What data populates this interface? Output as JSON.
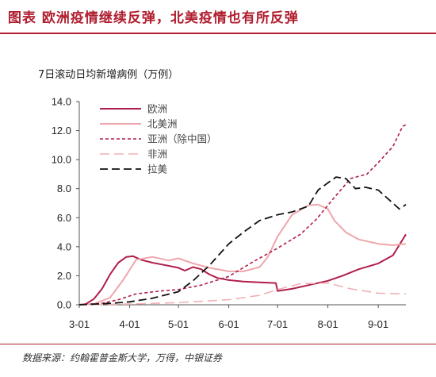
{
  "header": {
    "title": "图表    欧洲疫情继续反弹，北美疫情也有所反弹"
  },
  "footer": {
    "source": "数据来源：约翰霍普金斯大学，万得，中银证券"
  },
  "chart_data": {
    "type": "line",
    "title": "7日滚动日均新增病例（万例）",
    "xlabel": "",
    "ylabel": "",
    "x_range": [
      "03-01",
      "09-18"
    ],
    "xticks": [
      "3-01",
      "4-01",
      "5-01",
      "6-01",
      "7-01",
      "8-01",
      "9-01"
    ],
    "xtick_dates": [
      "03-01",
      "04-01",
      "05-01",
      "06-01",
      "07-01",
      "08-01",
      "09-01"
    ],
    "ylim": [
      0,
      14
    ],
    "yticks": [
      "0.0",
      "2.0",
      "4.0",
      "6.0",
      "8.0",
      "10.0",
      "12.0",
      "14.0"
    ],
    "ytick_values": [
      0,
      2,
      4,
      6,
      8,
      10,
      12,
      14
    ],
    "grid": false,
    "legend_position": "top-left",
    "series": [
      {
        "name": "欧洲",
        "color": "#b01e4a",
        "dash": "solid",
        "width": 2,
        "x": [
          "03-01",
          "03-05",
          "03-10",
          "03-15",
          "03-20",
          "03-25",
          "03-30",
          "04-03",
          "04-08",
          "04-15",
          "04-22",
          "05-01",
          "05-05",
          "05-10",
          "05-15",
          "05-20",
          "05-25",
          "06-01",
          "06-10",
          "06-20",
          "06-30",
          "07-01",
          "07-10",
          "07-20",
          "08-01",
          "08-10",
          "08-20",
          "09-01",
          "09-10",
          "09-18"
        ],
        "y": [
          0.0,
          0.05,
          0.4,
          1.1,
          2.1,
          2.9,
          3.3,
          3.35,
          3.1,
          2.9,
          2.75,
          2.55,
          2.35,
          2.6,
          2.45,
          2.1,
          1.85,
          1.7,
          1.6,
          1.55,
          1.5,
          0.95,
          1.1,
          1.35,
          1.65,
          2.0,
          2.45,
          2.85,
          3.4,
          4.85
        ]
      },
      {
        "name": "北美洲",
        "color": "#eea6ac",
        "dash": "solid",
        "width": 2,
        "x": [
          "03-01",
          "03-10",
          "03-20",
          "03-28",
          "04-05",
          "04-15",
          "04-25",
          "05-01",
          "05-10",
          "05-20",
          "06-01",
          "06-10",
          "06-20",
          "06-25",
          "07-01",
          "07-10",
          "07-20",
          "07-26",
          "08-01",
          "08-05",
          "08-12",
          "08-20",
          "09-01",
          "09-10",
          "09-18"
        ],
        "y": [
          0.0,
          0.05,
          0.5,
          1.7,
          3.1,
          3.3,
          3.05,
          3.2,
          2.85,
          2.55,
          2.3,
          2.3,
          2.6,
          3.3,
          4.7,
          6.2,
          6.85,
          6.9,
          6.6,
          5.8,
          5.0,
          4.5,
          4.2,
          4.1,
          4.2
        ]
      },
      {
        "name": "亚洲（除中国）",
        "color": "#b01e4a",
        "dash": "4,3",
        "width": 1.6,
        "x": [
          "03-01",
          "03-15",
          "03-25",
          "04-05",
          "04-20",
          "05-01",
          "05-15",
          "06-01",
          "06-15",
          "07-01",
          "07-15",
          "07-25",
          "08-05",
          "08-15",
          "08-25",
          "09-01",
          "09-10",
          "09-16",
          "09-18"
        ],
        "y": [
          0.0,
          0.1,
          0.35,
          0.75,
          0.95,
          1.05,
          1.35,
          1.95,
          2.9,
          3.9,
          4.85,
          5.9,
          7.4,
          8.7,
          9.0,
          9.8,
          10.9,
          12.3,
          12.4
        ]
      },
      {
        "name": "非洲",
        "color": "#f0b0b4",
        "dash": "12,6",
        "width": 1.6,
        "x": [
          "03-01",
          "04-01",
          "05-01",
          "06-01",
          "06-20",
          "07-01",
          "07-15",
          "08-01",
          "08-15",
          "09-01",
          "09-18"
        ],
        "y": [
          0.0,
          0.05,
          0.15,
          0.35,
          0.65,
          1.05,
          1.45,
          1.5,
          1.1,
          0.8,
          0.75
        ]
      },
      {
        "name": "拉美",
        "color": "#111111",
        "dash": "10,5",
        "width": 1.8,
        "x": [
          "03-01",
          "03-20",
          "04-01",
          "04-15",
          "05-01",
          "05-10",
          "05-20",
          "06-01",
          "06-10",
          "06-20",
          "07-01",
          "07-10",
          "07-20",
          "07-26",
          "08-01",
          "08-06",
          "08-12",
          "08-18",
          "08-24",
          "09-01",
          "09-08",
          "09-14",
          "09-18"
        ],
        "y": [
          0.0,
          0.1,
          0.2,
          0.45,
          0.9,
          1.65,
          2.7,
          4.2,
          5.0,
          5.8,
          6.2,
          6.4,
          6.8,
          7.9,
          8.4,
          8.8,
          8.7,
          8.0,
          8.1,
          7.9,
          7.2,
          6.6,
          6.9
        ]
      }
    ]
  }
}
